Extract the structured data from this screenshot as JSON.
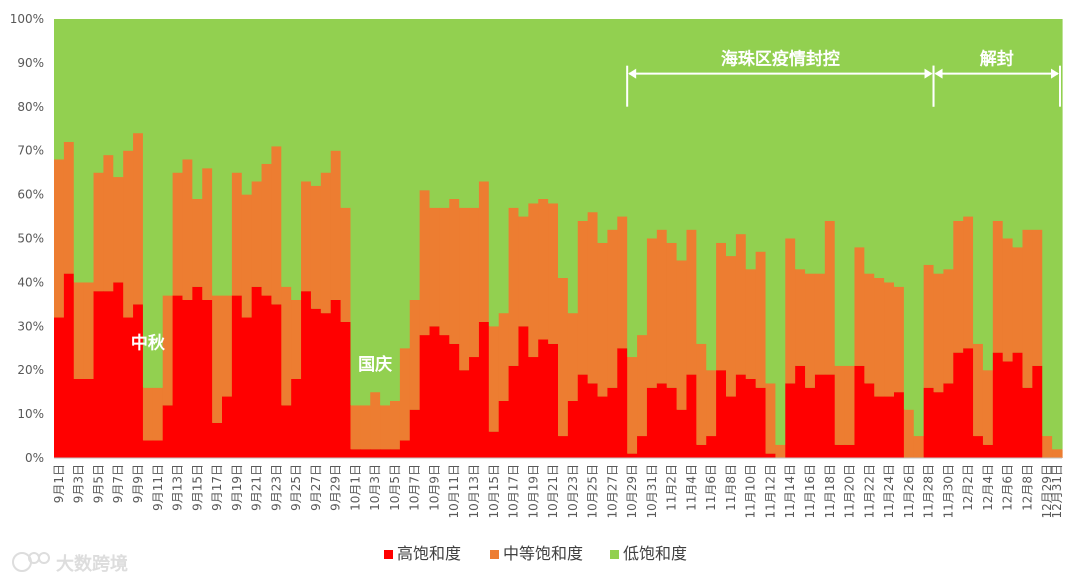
{
  "chart_data": {
    "type": "bar",
    "stacked": true,
    "percent_stacked": true,
    "ylim": [
      0,
      100
    ],
    "yticks": [
      "0%",
      "10%",
      "20%",
      "30%",
      "40%",
      "50%",
      "60%",
      "70%",
      "80%",
      "90%",
      "100%"
    ],
    "grid": false,
    "legend_position": "bottom",
    "series": [
      {
        "name": "高饱和度",
        "color": "#ff0000",
        "values": [
          32,
          42,
          18,
          18,
          38,
          38,
          40,
          32,
          35,
          4,
          4,
          12,
          37,
          36,
          39,
          36,
          8,
          14,
          37,
          32,
          39,
          37,
          35,
          12,
          18,
          38,
          34,
          33,
          36,
          31,
          2,
          2,
          2,
          2,
          2,
          4,
          11,
          28,
          30,
          28,
          26,
          20,
          23,
          31,
          6,
          13,
          21,
          30,
          23,
          27,
          26,
          5,
          13,
          19,
          17,
          14,
          16,
          25,
          1,
          5,
          16,
          17,
          16,
          11,
          19,
          3,
          5,
          20,
          14,
          19,
          18,
          16,
          1,
          0,
          17,
          21,
          16,
          19,
          19,
          3,
          3,
          21,
          17,
          14,
          14,
          15,
          0,
          0,
          16,
          15,
          17,
          24,
          25,
          5,
          3,
          24,
          22,
          24,
          16,
          21,
          0,
          0
        ]
      },
      {
        "name": "中等饱和度",
        "color": "#ed7d31",
        "values": [
          36,
          30,
          22,
          22,
          27,
          31,
          24,
          38,
          39,
          12,
          12,
          25,
          28,
          32,
          20,
          30,
          29,
          23,
          28,
          28,
          24,
          30,
          36,
          27,
          18,
          25,
          28,
          32,
          34,
          26,
          10,
          10,
          13,
          10,
          11,
          21,
          25,
          33,
          27,
          29,
          33,
          37,
          34,
          32,
          24,
          20,
          36,
          25,
          35,
          32,
          32,
          36,
          20,
          35,
          39,
          35,
          36,
          30,
          22,
          23,
          34,
          35,
          33,
          34,
          33,
          23,
          15,
          29,
          32,
          32,
          25,
          31,
          16,
          3,
          33,
          22,
          26,
          23,
          35,
          18,
          18,
          27,
          25,
          27,
          26,
          24,
          11,
          5,
          28,
          27,
          26,
          30,
          30,
          21,
          17,
          30,
          28,
          24,
          36,
          31,
          5,
          2
        ]
      },
      {
        "name": "低饱和度",
        "color": "#92d050",
        "values": [
          32,
          28,
          60,
          60,
          35,
          31,
          36,
          30,
          26,
          84,
          84,
          63,
          35,
          32,
          41,
          34,
          63,
          63,
          35,
          40,
          37,
          33,
          29,
          61,
          64,
          37,
          38,
          35,
          30,
          43,
          88,
          88,
          85,
          88,
          87,
          75,
          64,
          39,
          43,
          43,
          41,
          43,
          43,
          37,
          70,
          67,
          43,
          45,
          42,
          41,
          42,
          59,
          67,
          46,
          44,
          51,
          48,
          45,
          77,
          72,
          50,
          48,
          51,
          55,
          48,
          74,
          80,
          51,
          54,
          49,
          57,
          53,
          83,
          97,
          50,
          57,
          58,
          58,
          46,
          79,
          79,
          52,
          58,
          59,
          60,
          61,
          89,
          95,
          56,
          58,
          57,
          46,
          45,
          74,
          80,
          46,
          50,
          52,
          48,
          48,
          95,
          98
        ]
      }
    ],
    "categories": [
      "9月1日",
      "9月2日",
      "9月3日",
      "9月4日",
      "9月5日",
      "9月6日",
      "9月7日",
      "9月8日",
      "9月9日",
      "9月10日",
      "9月11日",
      "9月12日",
      "9月13日",
      "9月14日",
      "9月15日",
      "9月16日",
      "9月17日",
      "9月18日",
      "9月19日",
      "9月20日",
      "9月21日",
      "9月22日",
      "9月23日",
      "9月24日",
      "9月25日",
      "9月26日",
      "9月27日",
      "9月28日",
      "9月29日",
      "9月30日",
      "10月1日",
      "10月2日",
      "10月3日",
      "10月4日",
      "10月5日",
      "10月6日",
      "10月7日",
      "10月8日",
      "10月9日",
      "10月10日",
      "10月11日",
      "10月12日",
      "10月13日",
      "10月14日",
      "10月15日",
      "10月16日",
      "10月17日",
      "10月18日",
      "10月19日",
      "10月20日",
      "10月21日",
      "10月22日",
      "10月23日",
      "10月24日",
      "10月25日",
      "10月26日",
      "10月27日",
      "10月28日",
      "10月29日",
      "10月30日",
      "10月31日",
      "11月1日",
      "11月2日",
      "11月3日",
      "11月4日",
      "11月5日",
      "11月6日",
      "11月7日",
      "11月8日",
      "11月9日",
      "11月10日",
      "11月11日",
      "11月12日",
      "11月13日",
      "11月14日",
      "11月15日",
      "11月16日",
      "11月17日",
      "11月18日",
      "11月19日",
      "11月20日",
      "11月21日",
      "11月22日",
      "11月23日",
      "11月24日",
      "11月25日",
      "11月26日",
      "11月27日",
      "11月28日",
      "11月29日",
      "11月30日",
      "12月1日",
      "12月2日",
      "12月3日",
      "12月4日",
      "12月5日",
      "12月6日",
      "12月7日",
      "12月8日",
      "12月9日",
      "12月29日",
      "12月31日"
    ],
    "xtick_labels": [
      "9月1日",
      "9月3日",
      "9月5日",
      "9月7日",
      "9月9日",
      "9月11日",
      "9月13日",
      "9月15日",
      "9月17日",
      "9月19日",
      "9月21日",
      "9月23日",
      "9月25日",
      "9月27日",
      "9月29日",
      "10月1日",
      "10月3日",
      "10月5日",
      "10月7日",
      "10月9日",
      "10月11日",
      "10月13日",
      "10月15日",
      "10月17日",
      "10月19日",
      "10月21日",
      "10月23日",
      "10月25日",
      "10月27日",
      "10月29日",
      "10月31日",
      "11月2日",
      "11月4日",
      "11月6日",
      "11月8日",
      "11月10日",
      "11月12日",
      "11月14日",
      "11月16日",
      "11月18日",
      "11月20日",
      "11月22日",
      "11月24日",
      "11月26日",
      "11月28日",
      "11月30日",
      "12月2日",
      "12月4日",
      "12月6日",
      "12月8日",
      "12月29日",
      "12月31日"
    ],
    "annotations": [
      {
        "text": "中秋",
        "at_category": "9月10日",
        "y": 25
      },
      {
        "text": "国庆",
        "at_category": "10月3日",
        "y": 20
      },
      {
        "text": "海珠区疫情封控",
        "from_category": "10月29日",
        "to_category": "11月29日",
        "y": 88
      },
      {
        "text": "解封",
        "from_category": "11月29日",
        "to_category": "12月31日",
        "y": 88
      }
    ]
  },
  "watermark": {
    "text": "大数跨境"
  }
}
